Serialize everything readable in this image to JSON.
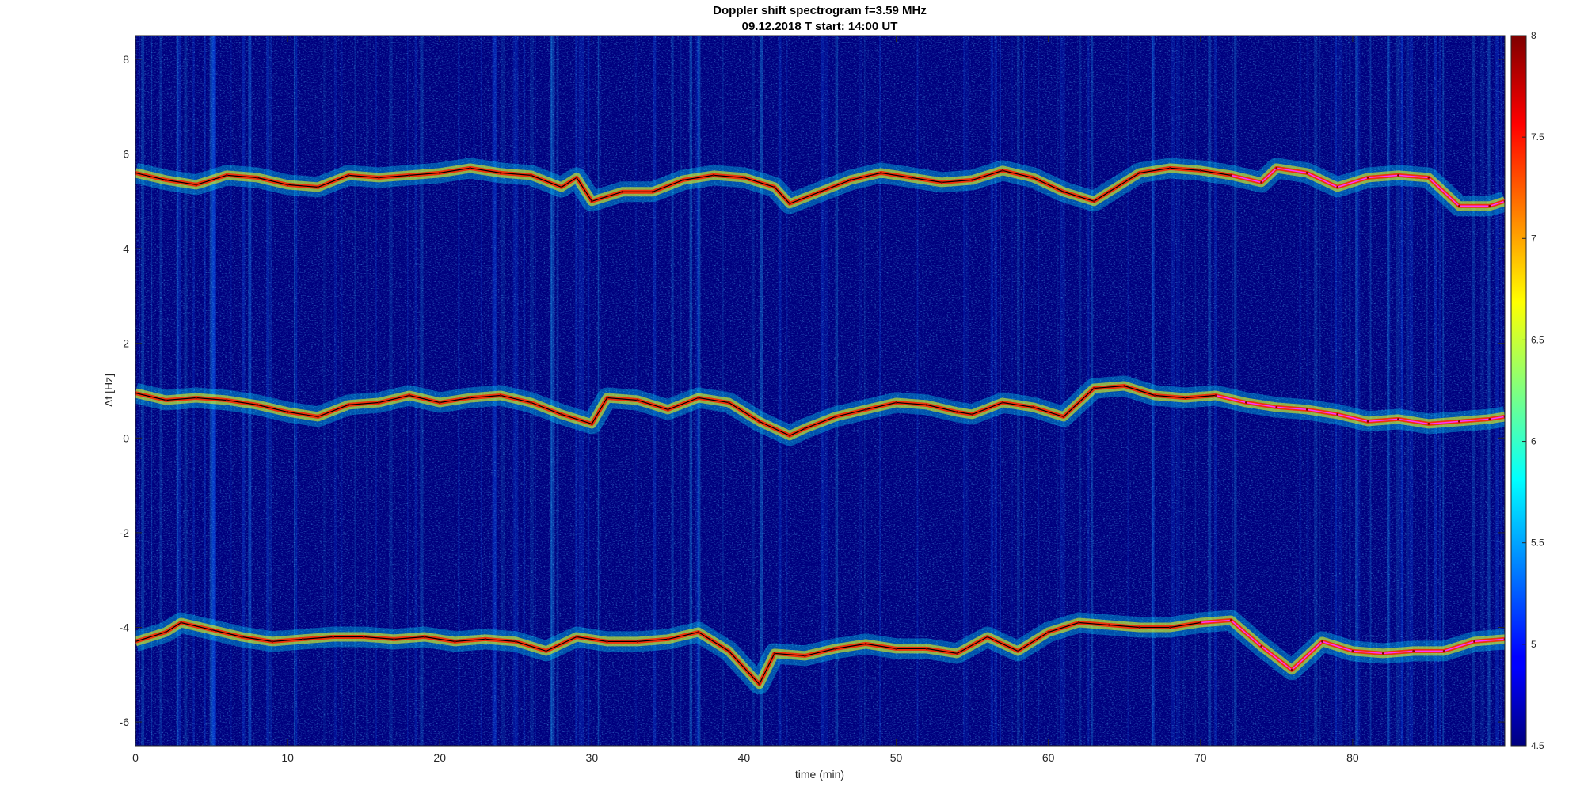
{
  "chart_data": {
    "type": "heatmap",
    "title": "Doppler shift spectrogram f=3.59 MHz",
    "subtitle": "09.12.2018   T start: 14:00 UT",
    "xlabel": "time (min)",
    "ylabel": "Δf [Hz]",
    "xlim": [
      0,
      90
    ],
    "ylim": [
      -6.5,
      8.5
    ],
    "xticks": [
      0,
      10,
      20,
      30,
      40,
      50,
      60,
      70,
      80
    ],
    "yticks": [
      -6,
      -4,
      -2,
      0,
      2,
      4,
      6,
      8
    ],
    "colormap": "jet",
    "clim": [
      4.5,
      8
    ],
    "colorbar_ticks": [
      4.5,
      5,
      5.5,
      6,
      6.5,
      7,
      7.5,
      8
    ],
    "grid": false,
    "background_color": "#00007f",
    "trace_colors": {
      "tracked": "#000000",
      "interpolated": "#ff33ff"
    },
    "series": [
      {
        "values": [
          [
            0,
            5.6
          ],
          [
            2,
            5.45
          ],
          [
            4,
            5.35
          ],
          [
            6,
            5.55
          ],
          [
            8,
            5.5
          ],
          [
            10,
            5.35
          ],
          [
            12,
            5.3
          ],
          [
            14,
            5.55
          ],
          [
            16,
            5.5
          ],
          [
            18,
            5.55
          ],
          [
            20,
            5.6
          ],
          [
            22,
            5.7
          ],
          [
            24,
            5.6
          ],
          [
            26,
            5.55
          ],
          [
            28,
            5.3
          ],
          [
            29,
            5.5
          ],
          [
            30,
            5.0
          ],
          [
            32,
            5.2
          ],
          [
            34,
            5.2
          ],
          [
            36,
            5.45
          ],
          [
            38,
            5.55
          ],
          [
            40,
            5.5
          ],
          [
            42,
            5.3
          ],
          [
            43,
            4.95
          ],
          [
            45,
            5.2
          ],
          [
            47,
            5.45
          ],
          [
            49,
            5.6
          ],
          [
            51,
            5.5
          ],
          [
            53,
            5.4
          ],
          [
            55,
            5.45
          ],
          [
            57,
            5.65
          ],
          [
            59,
            5.5
          ],
          [
            61,
            5.2
          ],
          [
            63,
            5.0
          ],
          [
            64,
            5.2
          ],
          [
            66,
            5.6
          ],
          [
            68,
            5.7
          ],
          [
            70,
            5.65
          ],
          [
            72,
            5.55
          ],
          [
            74,
            5.4
          ],
          [
            75,
            5.7
          ],
          [
            77,
            5.6
          ],
          [
            79,
            5.3
          ],
          [
            81,
            5.5
          ],
          [
            83,
            5.55
          ],
          [
            85,
            5.5
          ],
          [
            87,
            4.9
          ],
          [
            89,
            4.9
          ],
          [
            90,
            5.0
          ]
        ]
      },
      {
        "values": [
          [
            0,
            0.95
          ],
          [
            2,
            0.8
          ],
          [
            4,
            0.85
          ],
          [
            6,
            0.8
          ],
          [
            8,
            0.7
          ],
          [
            10,
            0.55
          ],
          [
            12,
            0.45
          ],
          [
            14,
            0.7
          ],
          [
            16,
            0.75
          ],
          [
            18,
            0.9
          ],
          [
            20,
            0.75
          ],
          [
            22,
            0.85
          ],
          [
            24,
            0.9
          ],
          [
            26,
            0.75
          ],
          [
            28,
            0.5
          ],
          [
            30,
            0.3
          ],
          [
            31,
            0.85
          ],
          [
            33,
            0.8
          ],
          [
            35,
            0.6
          ],
          [
            37,
            0.85
          ],
          [
            39,
            0.75
          ],
          [
            41,
            0.35
          ],
          [
            43,
            0.05
          ],
          [
            44,
            0.2
          ],
          [
            46,
            0.45
          ],
          [
            48,
            0.6
          ],
          [
            50,
            0.75
          ],
          [
            52,
            0.7
          ],
          [
            54,
            0.55
          ],
          [
            55,
            0.5
          ],
          [
            57,
            0.75
          ],
          [
            59,
            0.65
          ],
          [
            61,
            0.45
          ],
          [
            63,
            1.05
          ],
          [
            65,
            1.1
          ],
          [
            67,
            0.9
          ],
          [
            69,
            0.85
          ],
          [
            71,
            0.9
          ],
          [
            73,
            0.75
          ],
          [
            75,
            0.65
          ],
          [
            77,
            0.6
          ],
          [
            79,
            0.5
          ],
          [
            81,
            0.35
          ],
          [
            83,
            0.4
          ],
          [
            85,
            0.3
          ],
          [
            87,
            0.35
          ],
          [
            89,
            0.4
          ],
          [
            90,
            0.45
          ]
        ]
      },
      {
        "values": [
          [
            0,
            -4.3
          ],
          [
            2,
            -4.1
          ],
          [
            3,
            -3.9
          ],
          [
            5,
            -4.05
          ],
          [
            7,
            -4.2
          ],
          [
            9,
            -4.3
          ],
          [
            11,
            -4.25
          ],
          [
            13,
            -4.2
          ],
          [
            15,
            -4.2
          ],
          [
            17,
            -4.25
          ],
          [
            19,
            -4.2
          ],
          [
            21,
            -4.3
          ],
          [
            23,
            -4.25
          ],
          [
            25,
            -4.3
          ],
          [
            27,
            -4.5
          ],
          [
            29,
            -4.2
          ],
          [
            31,
            -4.3
          ],
          [
            33,
            -4.3
          ],
          [
            35,
            -4.25
          ],
          [
            37,
            -4.1
          ],
          [
            39,
            -4.5
          ],
          [
            41,
            -5.2
          ],
          [
            42,
            -4.55
          ],
          [
            44,
            -4.6
          ],
          [
            46,
            -4.45
          ],
          [
            48,
            -4.35
          ],
          [
            50,
            -4.45
          ],
          [
            52,
            -4.45
          ],
          [
            54,
            -4.55
          ],
          [
            56,
            -4.2
          ],
          [
            58,
            -4.5
          ],
          [
            60,
            -4.1
          ],
          [
            62,
            -3.9
          ],
          [
            64,
            -3.95
          ],
          [
            66,
            -4.0
          ],
          [
            68,
            -4.0
          ],
          [
            70,
            -3.9
          ],
          [
            72,
            -3.85
          ],
          [
            74,
            -4.4
          ],
          [
            76,
            -4.9
          ],
          [
            78,
            -4.3
          ],
          [
            80,
            -4.5
          ],
          [
            82,
            -4.55
          ],
          [
            84,
            -4.5
          ],
          [
            86,
            -4.5
          ],
          [
            88,
            -4.3
          ],
          [
            90,
            -4.25
          ]
        ]
      }
    ]
  }
}
